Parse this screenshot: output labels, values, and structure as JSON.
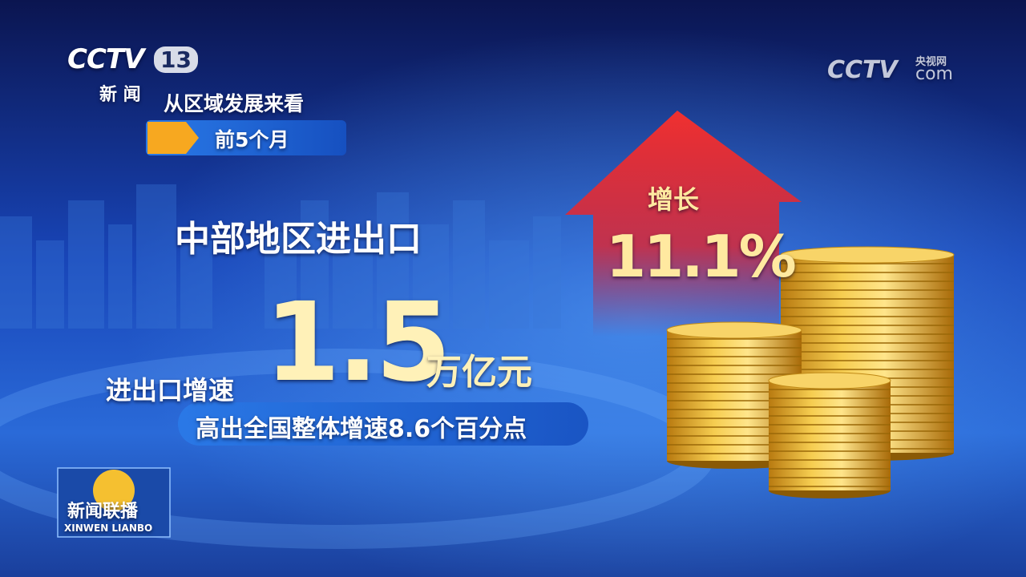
{
  "channel_logo": {
    "brand": "CCTV",
    "number": "13",
    "sub": "新 闻"
  },
  "watermark": {
    "brand": "CCTV",
    "site": "央视网",
    "domain": "com"
  },
  "header": {
    "title": "从区域发展来看",
    "period": "前5个月"
  },
  "main": {
    "subject": "中部地区进出口",
    "value": "1.5",
    "unit": "万亿元",
    "growth_label": "进出口增速",
    "note": "高出全国整体增速8.6个百分点"
  },
  "arrow": {
    "label": "增长",
    "value": "11.1%"
  },
  "program": {
    "name": "新闻联播",
    "pinyin": "XINWEN LIANBO"
  }
}
